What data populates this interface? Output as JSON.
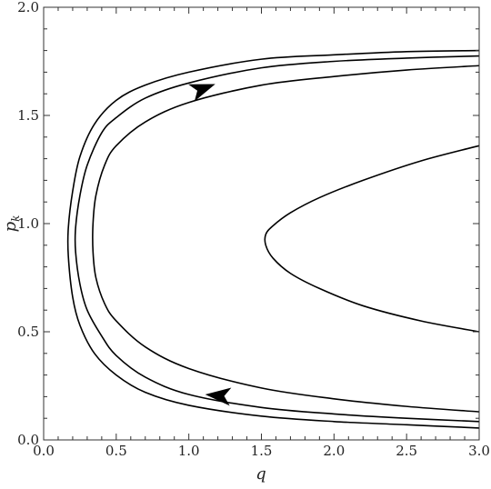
{
  "chart_data": {
    "type": "line",
    "title": "",
    "xlabel": "q",
    "ylabel": "p",
    "ylabel_subscript": "k",
    "xlim": [
      0,
      3
    ],
    "ylim": [
      0,
      2
    ],
    "xticks": [
      "0.0",
      "0.5",
      "1.0",
      "1.5",
      "2.0",
      "2.5",
      "3.0"
    ],
    "yticks": [
      "0.0",
      "0.5",
      "1.0",
      "1.5",
      "2.0"
    ],
    "grid": false,
    "series": [
      {
        "x": [
          3.0,
          2.5,
          2.0,
          1.5,
          1.0,
          0.7,
          0.5,
          0.35,
          0.25,
          0.2,
          0.17,
          0.17,
          0.2,
          0.25,
          0.35,
          0.5,
          0.7,
          1.0,
          1.5,
          2.0,
          2.5,
          3.0
        ],
        "y": [
          1.8,
          1.795,
          1.78,
          1.76,
          1.7,
          1.64,
          1.57,
          1.46,
          1.31,
          1.15,
          0.98,
          0.85,
          0.66,
          0.53,
          0.4,
          0.3,
          0.22,
          0.16,
          0.11,
          0.085,
          0.07,
          0.055
        ]
      },
      {
        "x": [
          3.0,
          2.5,
          2.0,
          1.5,
          1.0,
          0.7,
          0.5,
          0.4,
          0.3,
          0.25,
          0.22,
          0.22,
          0.25,
          0.3,
          0.4,
          0.5,
          0.7,
          1.0,
          1.5,
          2.0,
          2.5,
          3.0
        ],
        "y": [
          1.775,
          1.765,
          1.75,
          1.72,
          1.65,
          1.58,
          1.49,
          1.42,
          1.27,
          1.13,
          0.98,
          0.87,
          0.72,
          0.6,
          0.48,
          0.39,
          0.29,
          0.21,
          0.15,
          0.12,
          0.1,
          0.085
        ]
      },
      {
        "x": [
          3.0,
          2.5,
          2.0,
          1.5,
          1.0,
          0.7,
          0.5,
          0.42,
          0.36,
          0.34,
          0.34,
          0.36,
          0.42,
          0.5,
          0.7,
          1.0,
          1.5,
          2.0,
          2.5,
          3.0
        ],
        "y": [
          1.73,
          1.71,
          1.68,
          1.64,
          1.56,
          1.47,
          1.36,
          1.27,
          1.13,
          1.0,
          0.87,
          0.75,
          0.63,
          0.55,
          0.43,
          0.33,
          0.24,
          0.19,
          0.155,
          0.13
        ]
      },
      {
        "x": [
          3.0,
          2.6,
          2.2,
          1.9,
          1.7,
          1.58,
          1.53,
          1.53,
          1.58,
          1.7,
          1.9,
          2.2,
          2.6,
          3.0
        ],
        "y": [
          1.36,
          1.29,
          1.2,
          1.12,
          1.05,
          0.99,
          0.95,
          0.9,
          0.84,
          0.77,
          0.7,
          0.62,
          0.55,
          0.5
        ]
      }
    ],
    "arrows": [
      {
        "x": 1.1,
        "y": 1.625,
        "direction": "up-right"
      },
      {
        "x": 1.2,
        "y": 0.205,
        "direction": "left"
      }
    ]
  }
}
